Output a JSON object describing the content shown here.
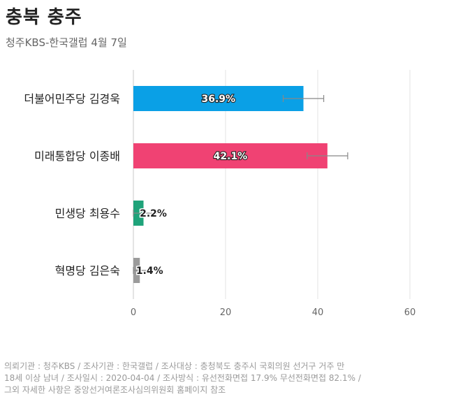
{
  "header": {
    "title": "충북 충주",
    "subtitle": "청주KBS-한국갤럽 4월 7일"
  },
  "footer": {
    "line1": "의뢰기관 : 청주KBS / 조사기관 : 한국갤럽 / 조사대상 : 충청북도 충주시 국회의원 선거구 거주 만",
    "line2": "18세 이상 남녀 / 조사일시 : 2020-04-04 / 조사방식 : 유선전화면접 17.9% 무선전화면접 82.1% /",
    "line3": "그외 자세한 사항은 중앙선거여론조사심의위원회 홈페이지 참조"
  },
  "chart_data": {
    "type": "bar",
    "orientation": "horizontal",
    "categories": [
      "더불어민주당 김경욱",
      "미래통합당 이종배",
      "민생당 최용수",
      "혁명당 김은숙"
    ],
    "values": [
      36.9,
      42.1,
      2.2,
      1.4
    ],
    "labels": [
      "36.9%",
      "42.1%",
      "2.2%",
      "1.4%"
    ],
    "error_margin": 4.4,
    "colors": [
      "#0aa0e6",
      "#f04273",
      "#1fa37a",
      "#9b9b9b"
    ],
    "xlim": [
      0,
      70
    ],
    "xticks": [
      0,
      20,
      40,
      60
    ],
    "grid": true
  }
}
